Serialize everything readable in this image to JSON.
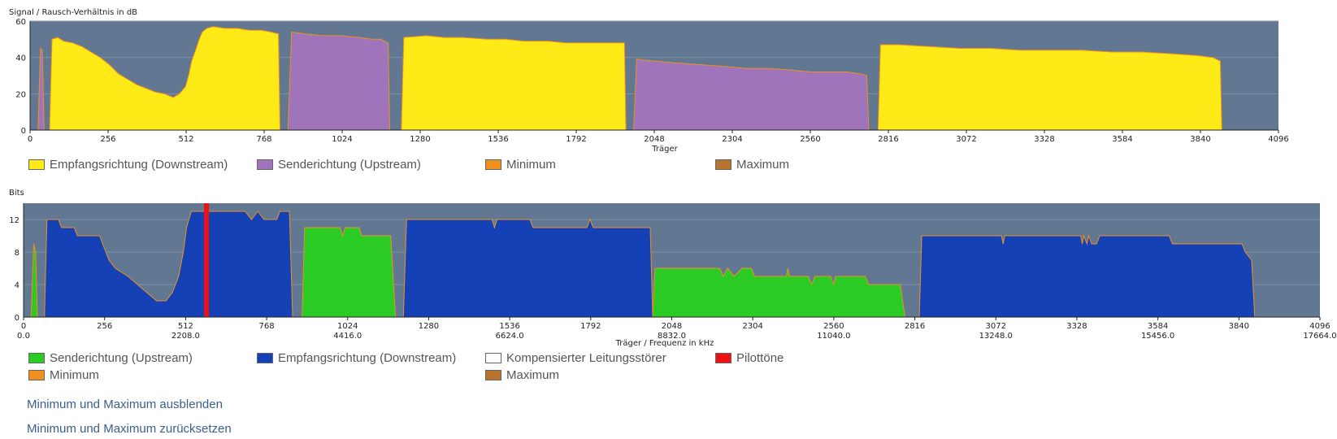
{
  "colors": {
    "plot_bg": "#627892",
    "downstream_snr": "#fdea17",
    "upstream_snr": "#9f74ba",
    "bits_downstream": "#1441b5",
    "bits_upstream": "#2acb24",
    "pilot": "#ee1111",
    "min": "#f0901e",
    "max": "#b8742c",
    "compensated": "#ffffff"
  },
  "chart_data": [
    {
      "type": "area",
      "title": "Signal / Rausch-Verhältnis in dB",
      "xlabel": "Träger",
      "ylabel": "",
      "xlim": [
        0,
        4096
      ],
      "ylim": [
        0,
        60
      ],
      "x_ticks": [
        0,
        256,
        512,
        768,
        1024,
        1280,
        1536,
        1792,
        2048,
        2304,
        2560,
        2816,
        3072,
        3328,
        3584,
        3840,
        4096
      ],
      "y_ticks": [
        0,
        20,
        40,
        60
      ],
      "grid": true,
      "series": [
        {
          "name": "Empfangsrichtung (Downstream)",
          "color_key": "downstream_snr",
          "segments": [
            [
              [
                64,
                0
              ],
              [
                72,
                50
              ],
              [
                90,
                51
              ],
              [
                110,
                49
              ],
              [
                140,
                48
              ],
              [
                170,
                46
              ],
              [
                200,
                43
              ],
              [
                230,
                40
              ],
              [
                260,
                36
              ],
              [
                290,
                31
              ],
              [
                320,
                28
              ],
              [
                350,
                25
              ],
              [
                380,
                23
              ],
              [
                410,
                21
              ],
              [
                440,
                20
              ],
              [
                470,
                18
              ],
              [
                490,
                20
              ],
              [
                510,
                24
              ],
              [
                520,
                30
              ],
              [
                530,
                38
              ],
              [
                545,
                45
              ],
              [
                555,
                50
              ],
              [
                565,
                54
              ],
              [
                580,
                56
              ],
              [
                600,
                57
              ],
              [
                640,
                56
              ],
              [
                680,
                56
              ],
              [
                720,
                55
              ],
              [
                760,
                55
              ],
              [
                790,
                54
              ],
              [
                815,
                53
              ],
              [
                820,
                0
              ]
            ],
            [
              [
                1218,
                0
              ],
              [
                1226,
                51
              ],
              [
                1300,
                52
              ],
              [
                1360,
                51
              ],
              [
                1420,
                51
              ],
              [
                1500,
                50
              ],
              [
                1560,
                50
              ],
              [
                1620,
                49
              ],
              [
                1700,
                49
              ],
              [
                1760,
                48
              ],
              [
                1830,
                48
              ],
              [
                1900,
                48
              ],
              [
                1950,
                48
              ],
              [
                1955,
                0
              ]
            ],
            [
              [
                2782,
                0
              ],
              [
                2790,
                47
              ],
              [
                2850,
                47
              ],
              [
                2950,
                46
              ],
              [
                3050,
                45
              ],
              [
                3150,
                45
              ],
              [
                3250,
                44
              ],
              [
                3350,
                44
              ],
              [
                3450,
                44
              ],
              [
                3550,
                43
              ],
              [
                3650,
                43
              ],
              [
                3750,
                42
              ],
              [
                3830,
                41
              ],
              [
                3880,
                40
              ],
              [
                3905,
                38
              ],
              [
                3910,
                0
              ]
            ]
          ]
        },
        {
          "name": "Senderichtung (Upstream)",
          "color_key": "upstream_snr",
          "segments": [
            [
              [
                26,
                0
              ],
              [
                34,
                45
              ],
              [
                40,
                44
              ],
              [
                46,
                0
              ]
            ],
            [
              [
                846,
                0
              ],
              [
                858,
                54
              ],
              [
                900,
                53
              ],
              [
                960,
                52
              ],
              [
                1020,
                52
              ],
              [
                1080,
                51
              ],
              [
                1120,
                50
              ],
              [
                1150,
                50
              ],
              [
                1175,
                48
              ],
              [
                1180,
                0
              ]
            ],
            [
              [
                1980,
                0
              ],
              [
                1990,
                39
              ],
              [
                2050,
                38
              ],
              [
                2120,
                37
              ],
              [
                2200,
                36
              ],
              [
                2280,
                35
              ],
              [
                2350,
                34
              ],
              [
                2420,
                34
              ],
              [
                2500,
                33
              ],
              [
                2560,
                32
              ],
              [
                2620,
                32
              ],
              [
                2680,
                32
              ],
              [
                2720,
                31
              ],
              [
                2745,
                30
              ],
              [
                2752,
                0
              ]
            ]
          ]
        },
        {
          "name": "Minimum",
          "color_key": "min",
          "segments": []
        },
        {
          "name": "Maximum",
          "color_key": "max",
          "segments": []
        }
      ]
    },
    {
      "type": "area",
      "title": "Bits",
      "xlabel": "Träger / Frequenz in kHz",
      "ylabel": "",
      "xlim": [
        0,
        4096
      ],
      "ylim": [
        0,
        14
      ],
      "x_ticks": [
        0,
        256,
        512,
        768,
        1024,
        1280,
        1536,
        1792,
        2048,
        2304,
        2560,
        2816,
        3072,
        3328,
        3584,
        3840,
        4096
      ],
      "x_ticks_khz": [
        "0.0",
        "",
        "2208.0",
        "",
        "4416.0",
        "",
        "6624.0",
        "",
        "8832.0",
        "",
        "11040.0",
        "",
        "13248.0",
        "",
        "15456.0",
        "",
        "17664.0"
      ],
      "y_ticks": [
        0,
        4,
        8,
        12
      ],
      "y_tick_labels": [
        "0",
        "4",
        "8",
        "12"
      ],
      "grid": true,
      "series": [
        {
          "name": "Senderichtung (Upstream)",
          "color_key": "bits_upstream",
          "segments": [
            [
              [
                24,
                0
              ],
              [
                32,
                9
              ],
              [
                38,
                8
              ],
              [
                44,
                0
              ]
            ],
            [
              [
                880,
                0
              ],
              [
                888,
                11
              ],
              [
                1000,
                11
              ],
              [
                1008,
                10
              ],
              [
                1016,
                11
              ],
              [
                1060,
                11
              ],
              [
                1068,
                10
              ],
              [
                1160,
                10
              ],
              [
                1175,
                0
              ]
            ],
            [
              [
                1988,
                0
              ],
              [
                1995,
                6
              ],
              [
                2200,
                6
              ],
              [
                2210,
                5
              ],
              [
                2225,
                6
              ],
              [
                2245,
                5
              ],
              [
                2270,
                6
              ],
              [
                2300,
                6
              ],
              [
                2310,
                5
              ],
              [
                2410,
                5
              ],
              [
                2415,
                6
              ],
              [
                2420,
                5
              ],
              [
                2480,
                5
              ],
              [
                2490,
                4
              ],
              [
                2500,
                5
              ],
              [
                2550,
                5
              ],
              [
                2560,
                4
              ],
              [
                2565,
                5
              ],
              [
                2660,
                5
              ],
              [
                2670,
                4
              ],
              [
                2770,
                4
              ],
              [
                2785,
                0
              ]
            ]
          ]
        },
        {
          "name": "Empfangsrichtung (Downstream)",
          "color_key": "bits_downstream",
          "segments": [
            [
              [
                66,
                0
              ],
              [
                74,
                12
              ],
              [
                110,
                12
              ],
              [
                120,
                11
              ],
              [
                160,
                11
              ],
              [
                170,
                10
              ],
              [
                240,
                10
              ],
              [
                250,
                9
              ],
              [
                260,
                8
              ],
              [
                270,
                7
              ],
              [
                290,
                6
              ],
              [
                330,
                5
              ],
              [
                360,
                4
              ],
              [
                390,
                3
              ],
              [
                420,
                2
              ],
              [
                450,
                2
              ],
              [
                470,
                3
              ],
              [
                490,
                5
              ],
              [
                505,
                8
              ],
              [
                515,
                11
              ],
              [
                530,
                13
              ],
              [
                700,
                13
              ],
              [
                720,
                12
              ],
              [
                740,
                13
              ],
              [
                760,
                12
              ],
              [
                800,
                12
              ],
              [
                810,
                13
              ],
              [
                840,
                13
              ],
              [
                850,
                0
              ]
            ],
            [
              [
                1200,
                0
              ],
              [
                1210,
                12
              ],
              [
                1480,
                12
              ],
              [
                1488,
                11
              ],
              [
                1496,
                12
              ],
              [
                1600,
                12
              ],
              [
                1610,
                11
              ],
              [
                1780,
                11
              ],
              [
                1790,
                12
              ],
              [
                1800,
                11
              ],
              [
                1980,
                11
              ],
              [
                1988,
                0
              ]
            ],
            [
              [
                2830,
                0
              ],
              [
                2838,
                10
              ],
              [
                3090,
                10
              ],
              [
                3095,
                9
              ],
              [
                3100,
                10
              ],
              [
                3340,
                10
              ],
              [
                3345,
                9
              ],
              [
                3350,
                10
              ],
              [
                3360,
                9
              ],
              [
                3365,
                10
              ],
              [
                3375,
                9
              ],
              [
                3390,
                9
              ],
              [
                3400,
                10
              ],
              [
                3620,
                10
              ],
              [
                3630,
                9
              ],
              [
                3850,
                9
              ],
              [
                3860,
                8
              ],
              [
                3880,
                7
              ],
              [
                3890,
                0
              ]
            ]
          ]
        },
        {
          "name": "Kompensierter Leitungsstörer",
          "color_key": "compensated",
          "segments": []
        },
        {
          "name": "Pilottöne",
          "color_key": "pilot",
          "markers": [
            [
              578,
              14
            ]
          ]
        },
        {
          "name": "Minimum",
          "color_key": "min",
          "segments": []
        },
        {
          "name": "Maximum",
          "color_key": "max",
          "segments": []
        }
      ]
    }
  ],
  "links": {
    "hide_minmax": "Minimum und Maximum ausblenden",
    "reset_minmax": "Minimum und Maximum zurücksetzen"
  }
}
